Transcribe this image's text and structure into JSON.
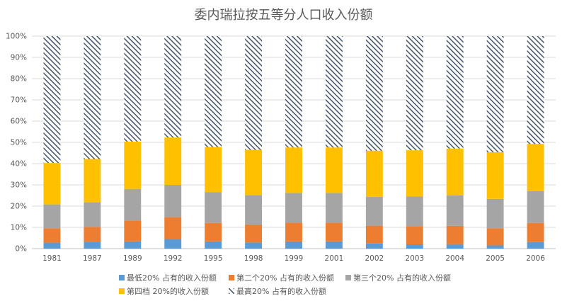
{
  "chart_data": {
    "type": "bar",
    "stacked": true,
    "percent": true,
    "title": "委内瑞拉按五等分人口收入份额",
    "xlabel": "",
    "ylabel": "",
    "ylim": [
      0,
      100
    ],
    "y_ticks": [
      "0%",
      "10%",
      "20%",
      "30%",
      "40%",
      "50%",
      "60%",
      "70%",
      "80%",
      "90%",
      "100%"
    ],
    "categories": [
      "1981",
      "1987",
      "1989",
      "1992",
      "1995",
      "1998",
      "1999",
      "2001",
      "2002",
      "2003",
      "2004",
      "2005",
      "2006"
    ],
    "grid": true,
    "legend_position": "bottom",
    "series": [
      {
        "name": "最低20% 占有的收入份额",
        "color": "#5B9BD5",
        "pattern": "solid",
        "values": [
          2.8,
          3.2,
          3.4,
          4.5,
          3.4,
          2.9,
          3.4,
          3.4,
          2.4,
          2.0,
          2.1,
          1.5,
          3.1
        ]
      },
      {
        "name": "第二个20% 占有的收入份额",
        "color": "#ED7D31",
        "pattern": "solid",
        "values": [
          6.8,
          7.0,
          9.8,
          10.3,
          8.7,
          8.5,
          8.8,
          8.8,
          8.4,
          8.6,
          8.6,
          8.1,
          9.0
        ]
      },
      {
        "name": "第三个20% 占有的收入份额",
        "color": "#A5A5A5",
        "pattern": "solid",
        "values": [
          11.2,
          11.6,
          14.9,
          15.2,
          14.4,
          13.8,
          14.0,
          14.0,
          13.6,
          13.9,
          14.4,
          13.8,
          15.0
        ]
      },
      {
        "name": "第四档 20%的收入份额",
        "color": "#FFC000",
        "pattern": "solid",
        "values": [
          19.5,
          20.4,
          22.3,
          22.3,
          21.3,
          21.3,
          21.4,
          21.4,
          21.7,
          21.8,
          22.0,
          22.0,
          22.2
        ]
      },
      {
        "name": "最高20% 占有的收入份额",
        "color": "#44546A",
        "pattern": "hatch",
        "values": [
          59.7,
          57.8,
          49.6,
          47.7,
          52.2,
          53.5,
          52.4,
          52.4,
          53.9,
          53.7,
          52.9,
          54.6,
          50.7
        ]
      }
    ]
  }
}
